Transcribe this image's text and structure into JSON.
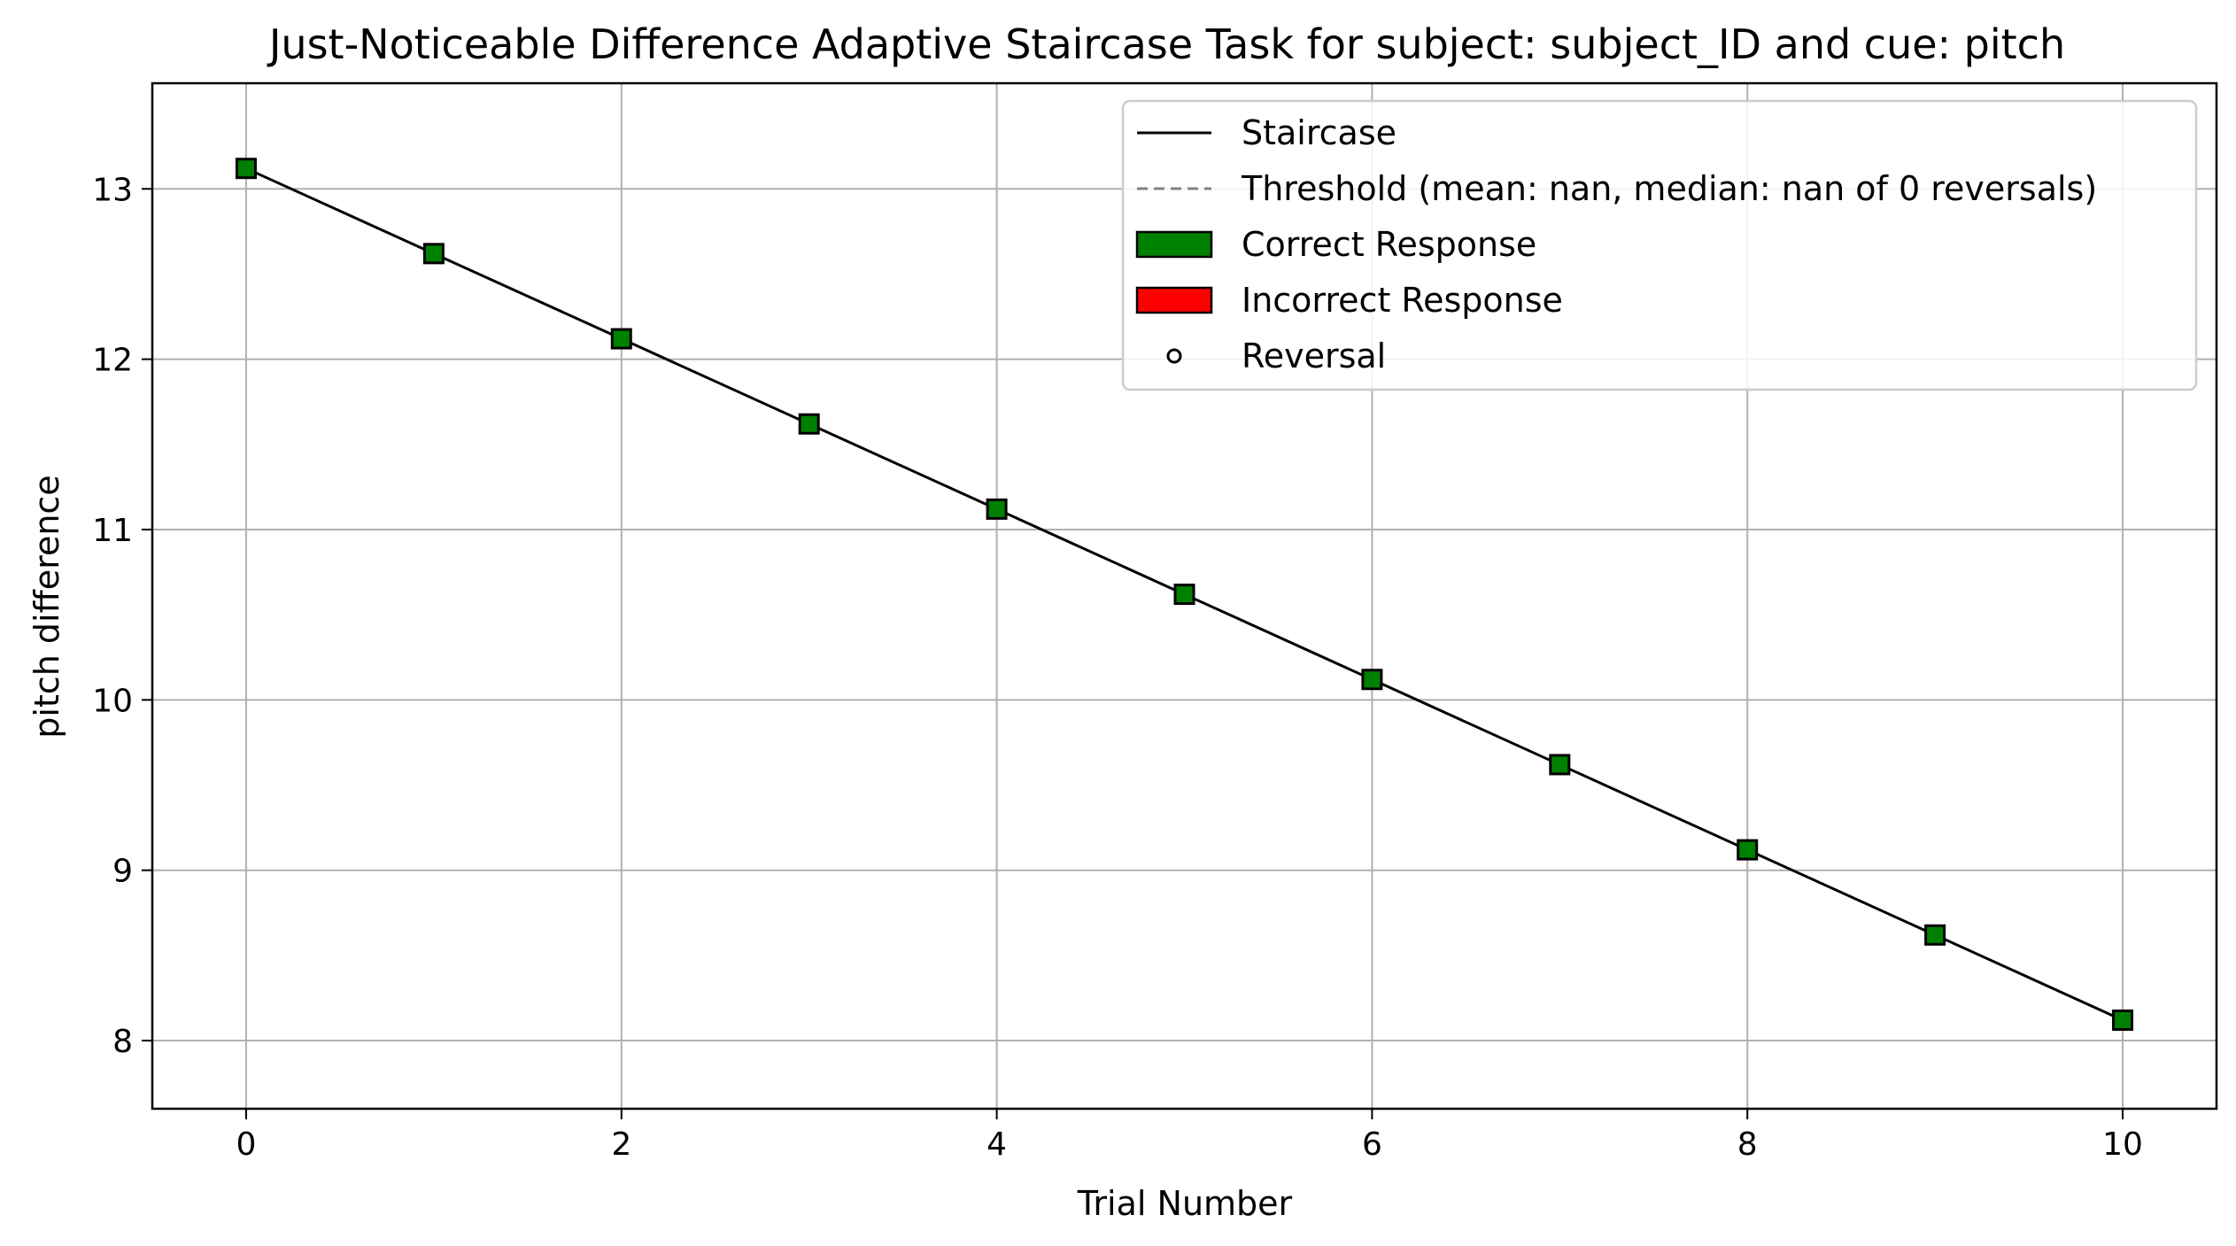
{
  "chart_data": {
    "type": "line",
    "title": "Just-Noticeable Difference Adaptive Staircase Task for subject: subject_ID and cue: pitch",
    "xlabel": "Trial Number",
    "ylabel": "pitch difference",
    "xlim": [
      -0.5,
      10.5
    ],
    "ylim": [
      7.6,
      13.62
    ],
    "grid": true,
    "legend_position": "top-right",
    "x_ticks": [
      0,
      2,
      4,
      6,
      8,
      10
    ],
    "y_ticks": [
      8,
      9,
      10,
      11,
      12,
      13
    ],
    "x": [
      0,
      1,
      2,
      3,
      4,
      5,
      6,
      7,
      8,
      9,
      10
    ],
    "series": [
      {
        "name": "Staircase",
        "values": [
          13.12,
          12.62,
          12.12,
          11.62,
          11.12,
          10.62,
          10.12,
          9.62,
          9.12,
          8.62,
          8.12
        ],
        "color": "#000000"
      }
    ],
    "responses": [
      "correct",
      "correct",
      "correct",
      "correct",
      "correct",
      "correct",
      "correct",
      "correct",
      "correct",
      "correct",
      "correct"
    ],
    "legend": [
      {
        "label": "Staircase",
        "kind": "line",
        "color": "#000000"
      },
      {
        "label": "Threshold (mean: nan, median: nan of 0 reversals)",
        "kind": "dashed",
        "color": "#808080"
      },
      {
        "label": "Correct Response",
        "kind": "patch",
        "color": "#008000"
      },
      {
        "label": "Incorrect Response",
        "kind": "patch",
        "color": "#ff0000"
      },
      {
        "label": "Reversal",
        "kind": "circle",
        "color": "#000000"
      }
    ],
    "colors": {
      "correct": "#008000",
      "incorrect": "#ff0000",
      "threshold": "#808080",
      "grid": "#b0b0b0"
    }
  }
}
